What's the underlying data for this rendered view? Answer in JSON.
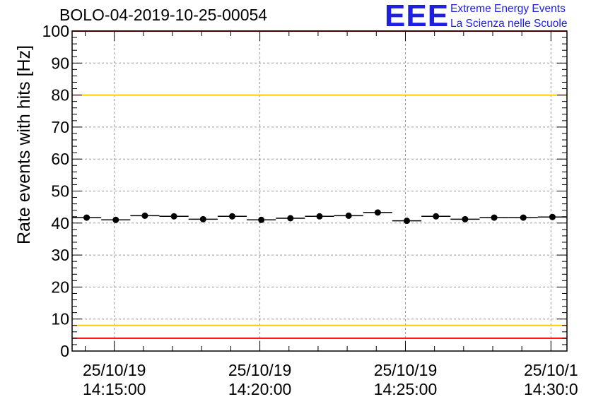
{
  "chart_data": {
    "type": "scatter",
    "title": "BOLO-04-2019-10-25-00054",
    "ylabel": "Rate events with hits [Hz]",
    "xlabel": "",
    "ylim": [
      0,
      100
    ],
    "xlim_minutes": [
      13.55,
      30.55
    ],
    "y_ticks": [
      "0",
      "10",
      "20",
      "30",
      "40",
      "50",
      "60",
      "70",
      "80",
      "90",
      "100"
    ],
    "x_ticks": [
      {
        "minute": 15,
        "date": "25/10/19",
        "time": "14:15:00"
      },
      {
        "minute": 20,
        "date": "25/10/19",
        "time": "14:20:00"
      },
      {
        "minute": 25,
        "date": "25/10/19",
        "time": "14:25:00"
      },
      {
        "minute": 30,
        "date": "25/10/1",
        "time": "14:30:0"
      }
    ],
    "bin_width_minutes": 1.0,
    "series": [
      {
        "name": "rate",
        "x": [
          14.05,
          15.05,
          16.05,
          17.05,
          18.05,
          19.05,
          20.05,
          21.05,
          22.05,
          23.05,
          24.05,
          25.05,
          26.05,
          27.05,
          28.05,
          29.05,
          30.05
        ],
        "y": [
          41.7,
          41.0,
          42.3,
          42.1,
          41.2,
          42.1,
          41.0,
          41.5,
          42.1,
          42.3,
          43.3,
          40.7,
          42.1,
          41.2,
          41.7,
          41.7,
          41.9
        ]
      }
    ],
    "reference_lines": [
      {
        "name": "upper-red-limit",
        "y": 100,
        "color": "#ff0000"
      },
      {
        "name": "upper-yellow-limit",
        "y": 80,
        "color": "#ffcc00"
      },
      {
        "name": "lower-yellow-limit",
        "y": 8,
        "color": "#ffcc00"
      },
      {
        "name": "lower-red-limit",
        "y": 4,
        "color": "#ff0000"
      }
    ],
    "grid": true
  },
  "logo": {
    "mark": "EEE",
    "line1": "Extreme Energy Events",
    "line2": "La Scienza nelle Scuole"
  }
}
